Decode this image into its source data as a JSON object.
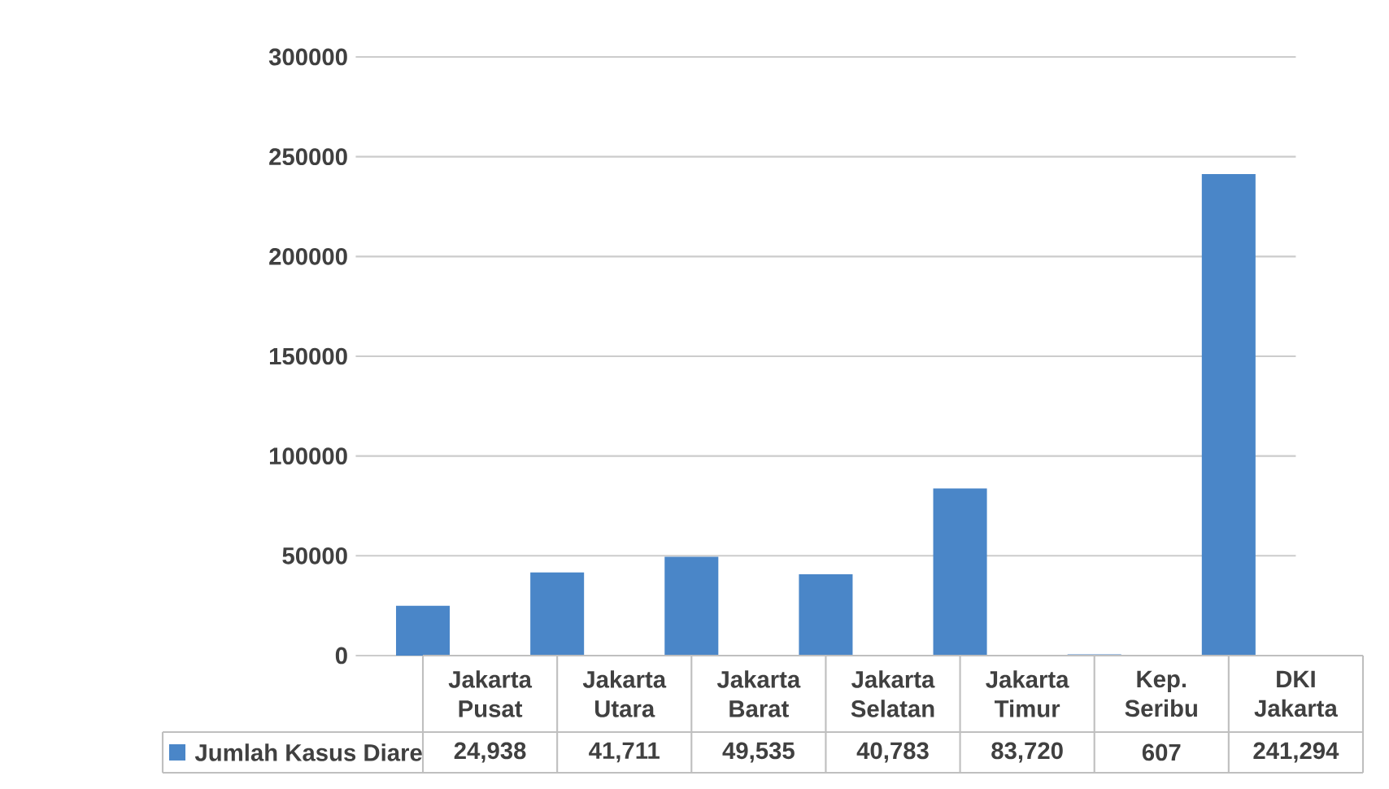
{
  "chart_data": {
    "type": "bar",
    "categories": [
      "Jakarta Pusat",
      "Jakarta Utara",
      "Jakarta Barat",
      "Jakarta Selatan",
      "Jakarta Timur",
      "Kep. Seribu",
      "DKI Jakarta"
    ],
    "series": [
      {
        "name": "Jumlah Kasus Diare",
        "color": "#4a86c8",
        "values": [
          24938,
          41711,
          49535,
          40783,
          83720,
          607,
          241294
        ],
        "value_labels": [
          "24,938",
          "41,711",
          "49,535",
          "40,783",
          "83,720",
          "607",
          "241,294"
        ]
      }
    ],
    "ylim": [
      0,
      300000
    ],
    "yticks": [
      0,
      50000,
      100000,
      150000,
      200000,
      250000,
      300000
    ],
    "grid": "y",
    "legend": "bottom"
  }
}
